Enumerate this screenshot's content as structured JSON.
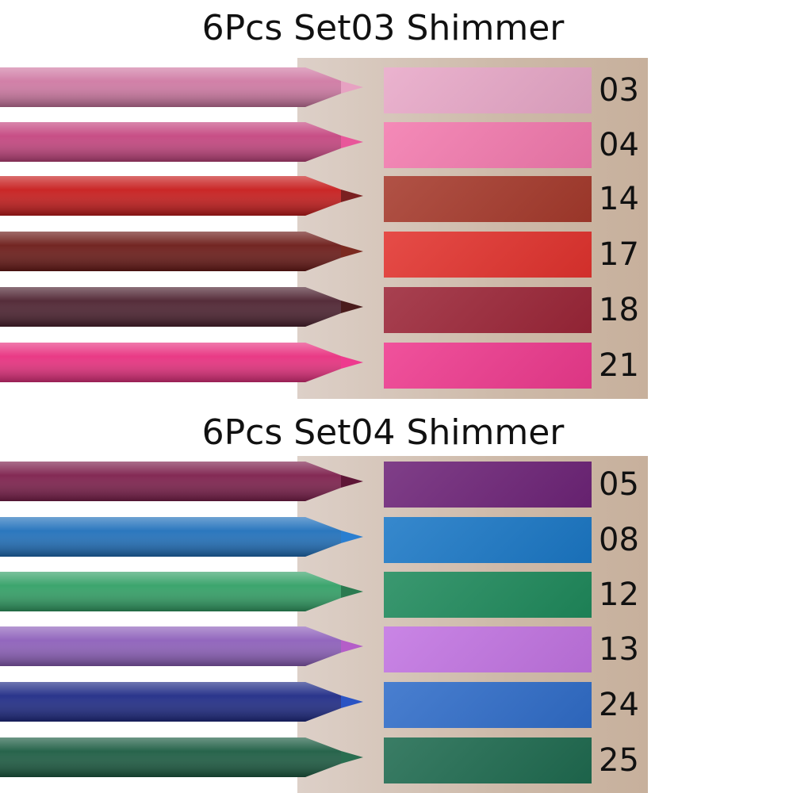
{
  "sets": [
    {
      "title": "6Pcs Set03 Shimmer",
      "shades": [
        {
          "number": "03",
          "swatch": "#e8a8c8",
          "body": "#cf79a3",
          "tip": "#e7a2c2"
        },
        {
          "number": "04",
          "swatch": "#f37aae",
          "body": "#c4457f",
          "tip": "#e8579a"
        },
        {
          "number": "14",
          "swatch": "#a63a2c",
          "body": "#c71c1c",
          "tip": "#7a2020"
        },
        {
          "number": "17",
          "swatch": "#e2332e",
          "body": "#6b1a17",
          "tip": "#7b2a20"
        },
        {
          "number": "18",
          "swatch": "#9c2638",
          "body": "#4d2230",
          "tip": "#4a1c1c"
        },
        {
          "number": "21",
          "swatch": "#ee3a8e",
          "body": "#e8307f",
          "tip": "#ee3a8e"
        }
      ]
    },
    {
      "title": "6Pcs Set04 Shimmer",
      "shades": [
        {
          "number": "05",
          "swatch": "#6e2478",
          "body": "#7d1f4c",
          "tip": "#5e1636"
        },
        {
          "number": "08",
          "swatch": "#1b78c6",
          "body": "#2070bb",
          "tip": "#2a7ed0"
        },
        {
          "number": "12",
          "swatch": "#1f8a5c",
          "body": "#32a066",
          "tip": "#2b7a50"
        },
        {
          "number": "13",
          "swatch": "#c274e2",
          "body": "#8d5fba",
          "tip": "#b45ec8"
        },
        {
          "number": "24",
          "swatch": "#306dc9",
          "body": "#1f2b86",
          "tip": "#2a54c4"
        },
        {
          "number": "25",
          "swatch": "#1f6b50",
          "body": "#1c5c42",
          "tip": "#2a6e50"
        }
      ]
    }
  ]
}
